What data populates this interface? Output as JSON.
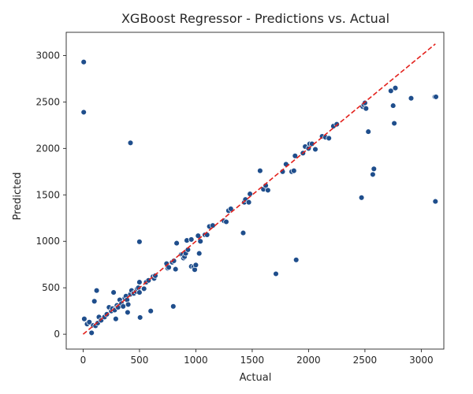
{
  "chart_data": {
    "type": "scatter",
    "title": "XGBoost Regressor - Predictions vs. Actual",
    "xlabel": "Actual",
    "ylabel": "Predicted",
    "xlim": [
      -150,
      3200
    ],
    "ylim": [
      -160,
      3250
    ],
    "xticks": [
      0,
      500,
      1000,
      1500,
      2000,
      2500,
      3000
    ],
    "yticks": [
      0,
      500,
      1000,
      1500,
      2000,
      2500,
      3000
    ],
    "grid": false,
    "legend": "none",
    "point_color": "#1f4e8c",
    "line_color": "#e3211c",
    "reference_line": {
      "from": [
        0,
        0
      ],
      "to": [
        3125,
        3125
      ]
    },
    "points": [
      [
        5,
        2930
      ],
      [
        5,
        2390
      ],
      [
        420,
        2060
      ],
      [
        10,
        165
      ],
      [
        35,
        110
      ],
      [
        55,
        130
      ],
      [
        75,
        15
      ],
      [
        90,
        95
      ],
      [
        100,
        355
      ],
      [
        110,
        90
      ],
      [
        120,
        470
      ],
      [
        130,
        120
      ],
      [
        140,
        185
      ],
      [
        160,
        150
      ],
      [
        190,
        185
      ],
      [
        210,
        215
      ],
      [
        230,
        290
      ],
      [
        250,
        250
      ],
      [
        260,
        275
      ],
      [
        270,
        450
      ],
      [
        280,
        260
      ],
      [
        290,
        165
      ],
      [
        300,
        310
      ],
      [
        310,
        290
      ],
      [
        325,
        370
      ],
      [
        340,
        330
      ],
      [
        355,
        300
      ],
      [
        370,
        390
      ],
      [
        380,
        410
      ],
      [
        390,
        370
      ],
      [
        395,
        235
      ],
      [
        400,
        320
      ],
      [
        420,
        430
      ],
      [
        430,
        470
      ],
      [
        450,
        440
      ],
      [
        470,
        460
      ],
      [
        480,
        490
      ],
      [
        490,
        500
      ],
      [
        500,
        995
      ],
      [
        500,
        560
      ],
      [
        500,
        450
      ],
      [
        505,
        180
      ],
      [
        540,
        490
      ],
      [
        560,
        560
      ],
      [
        580,
        580
      ],
      [
        600,
        250
      ],
      [
        620,
        620
      ],
      [
        630,
        600
      ],
      [
        640,
        630
      ],
      [
        740,
        760
      ],
      [
        750,
        710
      ],
      [
        760,
        720
      ],
      [
        790,
        775
      ],
      [
        800,
        300
      ],
      [
        805,
        790
      ],
      [
        820,
        700
      ],
      [
        830,
        980
      ],
      [
        870,
        860
      ],
      [
        880,
        860
      ],
      [
        890,
        820
      ],
      [
        900,
        835
      ],
      [
        910,
        870
      ],
      [
        920,
        1010
      ],
      [
        930,
        910
      ],
      [
        960,
        1020
      ],
      [
        960,
        730
      ],
      [
        980,
        725
      ],
      [
        990,
        695
      ],
      [
        1000,
        745
      ],
      [
        1020,
        1060
      ],
      [
        1030,
        870
      ],
      [
        1040,
        1000
      ],
      [
        1080,
        1070
      ],
      [
        1100,
        1070
      ],
      [
        1120,
        1160
      ],
      [
        1150,
        1170
      ],
      [
        1250,
        1220
      ],
      [
        1270,
        1210
      ],
      [
        1290,
        1330
      ],
      [
        1310,
        1350
      ],
      [
        1420,
        1090
      ],
      [
        1430,
        1420
      ],
      [
        1440,
        1450
      ],
      [
        1470,
        1420
      ],
      [
        1480,
        1510
      ],
      [
        1570,
        1760
      ],
      [
        1600,
        1560
      ],
      [
        1620,
        1600
      ],
      [
        1640,
        1550
      ],
      [
        1710,
        650
      ],
      [
        1770,
        1750
      ],
      [
        1800,
        1830
      ],
      [
        1850,
        1750
      ],
      [
        1870,
        1760
      ],
      [
        1880,
        1920
      ],
      [
        1890,
        800
      ],
      [
        1950,
        1950
      ],
      [
        1970,
        2020
      ],
      [
        2000,
        2000
      ],
      [
        2010,
        2050
      ],
      [
        2030,
        2050
      ],
      [
        2060,
        1990
      ],
      [
        2120,
        2130
      ],
      [
        2150,
        2120
      ],
      [
        2180,
        2110
      ],
      [
        2220,
        2240
      ],
      [
        2250,
        2260
      ],
      [
        2470,
        1470
      ],
      [
        2480,
        2450
      ],
      [
        2490,
        2470
      ],
      [
        2500,
        2490
      ],
      [
        2510,
        2430
      ],
      [
        2530,
        2180
      ],
      [
        2570,
        1720
      ],
      [
        2580,
        1780
      ],
      [
        2730,
        2620
      ],
      [
        2750,
        2460
      ],
      [
        2760,
        2270
      ],
      [
        2770,
        2650
      ],
      [
        2910,
        2540
      ],
      [
        3120,
        2555
      ],
      [
        3125,
        1430
      ],
      [
        3130,
        2555
      ]
    ]
  }
}
